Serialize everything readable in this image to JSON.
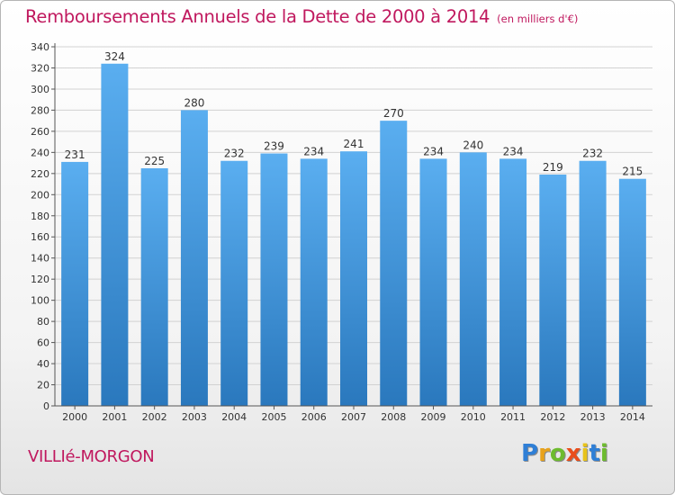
{
  "header": {
    "title": "Remboursements Annuels de la Dette de 2000 à 2014",
    "unit": "(en milliers d'€)"
  },
  "footer": {
    "place": "VILLIé-MORGON",
    "logo": [
      "P",
      "r",
      "o",
      "x",
      "i",
      "t",
      "i"
    ]
  },
  "colors": {
    "bar_top": "#5aaef0",
    "bar_bottom": "#2a78bd",
    "accent": "#c0185e"
  },
  "chart_data": {
    "type": "bar",
    "categories": [
      "2000",
      "2001",
      "2002",
      "2003",
      "2004",
      "2005",
      "2006",
      "2007",
      "2008",
      "2009",
      "2010",
      "2011",
      "2012",
      "2013",
      "2014"
    ],
    "values": [
      231,
      324,
      225,
      280,
      232,
      239,
      234,
      241,
      270,
      234,
      240,
      234,
      219,
      232,
      215
    ],
    "title": "Remboursements Annuels de la Dette de 2000 à 2014",
    "ylim": [
      0,
      340
    ],
    "ytick_step": 20,
    "grid": true,
    "data_labels": true
  }
}
